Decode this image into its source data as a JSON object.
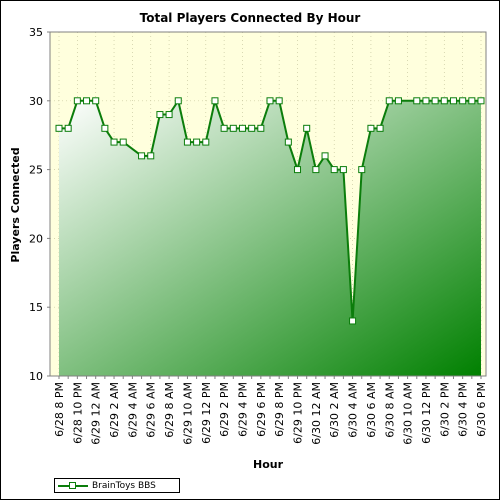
{
  "chart_data": {
    "type": "area",
    "title": "Total Players Connected By Hour",
    "xlabel": "Hour",
    "ylabel": "Players Connected",
    "ylim": [
      10,
      35
    ],
    "yticks": [
      10,
      15,
      20,
      25,
      30,
      35
    ],
    "categories": [
      "6/28 8 PM",
      "6/28 9 PM",
      "6/28 10 PM",
      "6/28 11 PM",
      "6/29 12 AM",
      "6/29 1 AM",
      "6/29 2 AM",
      "6/29 3 AM",
      "6/29 4 AM",
      "6/29 5 AM",
      "6/29 6 AM",
      "6/29 7 AM",
      "6/29 8 AM",
      "6/29 9 AM",
      "6/29 10 AM",
      "6/29 11 AM",
      "6/29 12 PM",
      "6/29 1 PM",
      "6/29 2 PM",
      "6/29 3 PM",
      "6/29 4 PM",
      "6/29 5 PM",
      "6/29 6 PM",
      "6/29 7 PM",
      "6/29 8 PM",
      "6/29 9 PM",
      "6/29 10 PM",
      "6/29 11 PM",
      "6/30 12 AM",
      "6/30 1 AM",
      "6/30 2 AM",
      "6/30 3 AM",
      "6/30 4 AM",
      "6/30 5 AM",
      "6/30 6 AM",
      "6/30 7 AM",
      "6/30 8 AM",
      "6/30 9 AM",
      "6/30 10 AM",
      "6/30 11 AM",
      "6/30 12 PM",
      "6/30 1 PM",
      "6/30 2 PM",
      "6/30 3 PM",
      "6/30 4 PM",
      "6/30 5 PM",
      "6/30 6 PM"
    ],
    "tick_labels": [
      "6/28 8 PM",
      "6/28 10 PM",
      "6/29 12 AM",
      "6/29 2 AM",
      "6/29 4 AM",
      "6/29 6 AM",
      "6/29 8 AM",
      "6/29 10 AM",
      "6/29 12 PM",
      "6/29 2 PM",
      "6/29 4 PM",
      "6/29 6 PM",
      "6/29 8 PM",
      "6/29 10 PM",
      "6/30 12 AM",
      "6/30 2 AM",
      "6/30 4 AM",
      "6/30 6 AM",
      "6/30 8 AM",
      "6/30 10 AM",
      "6/30 12 PM",
      "6/30 2 PM",
      "6/30 4 PM",
      "6/30 6 PM"
    ],
    "series": [
      {
        "name": "BrainToys BBS",
        "values": [
          28,
          28,
          30,
          30,
          30,
          28,
          27,
          27,
          null,
          26,
          26,
          29,
          29,
          30,
          27,
          27,
          27,
          30,
          28,
          28,
          28,
          28,
          28,
          30,
          30,
          27,
          25,
          28,
          25,
          26,
          25,
          25,
          14,
          25,
          28,
          28,
          30,
          30,
          null,
          30,
          30,
          30,
          30,
          30,
          30,
          30,
          30
        ]
      }
    ],
    "grid": true,
    "legend_position": "bottom-left",
    "colors": {
      "line": "#0b7d0b",
      "area_light": "#ffffff",
      "area_dark": "#008000",
      "plot_bg": "#ffffdd"
    }
  }
}
